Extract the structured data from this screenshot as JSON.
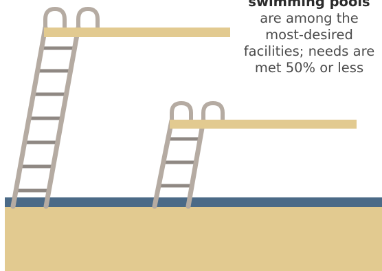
{
  "caption": {
    "lead": "swimming pools",
    "lines": [
      "are among the",
      "most-desired",
      "facilities; needs are",
      "met 50% or less"
    ]
  },
  "colors": {
    "background": "#ffffff",
    "water": "#4b6a87",
    "sand": "#e2ca90",
    "board": "#e2ca90",
    "ladder": "#b5aba2",
    "ladder_step": "#8f8883",
    "text": "#4a4a4a"
  }
}
